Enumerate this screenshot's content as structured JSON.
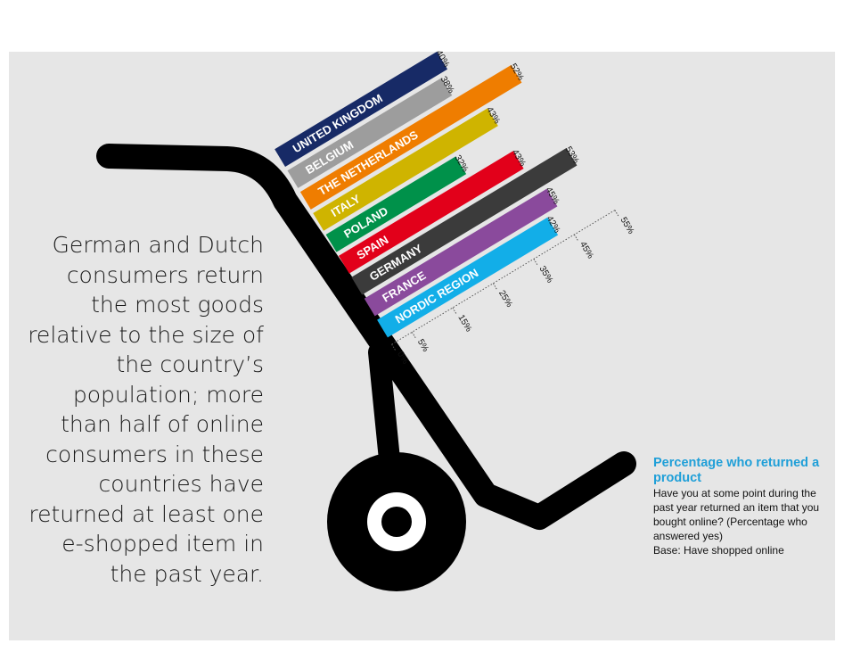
{
  "headline": "German and Dutch consumers return the most goods relative to the size of the country’s population; more than half of online consumers in these countries have returned at least one e-shopped item in the past year.",
  "legend": {
    "title": "Percentage who returned a product",
    "question": "Have you at some point during the past year returned an item that you bought online? (Percentage who answered yes)",
    "base": "Base: Have shopped online"
  },
  "chart_data": {
    "type": "bar",
    "title": "Percentage who returned a product",
    "categories": [
      "UNITED KINGDOM",
      "BELGIUM",
      "THE NETHERLANDS",
      "ITALY",
      "POLAND",
      "SPAIN",
      "GERMANY",
      "FRANCE",
      "NORDIC REGION"
    ],
    "values": [
      40,
      38,
      52,
      43,
      32,
      43,
      53,
      45,
      42
    ],
    "value_labels": [
      "40%",
      "38%",
      "52%",
      "43%",
      "32%",
      "43%",
      "53%",
      "45%",
      "42%"
    ],
    "colors": [
      "#172a66",
      "#9d9d9d",
      "#ef7d00",
      "#cfb400",
      "#00914a",
      "#e2001a",
      "#3b3b3b",
      "#8a4a9c",
      "#12aee8"
    ],
    "axis_ticks": [
      "0%",
      "5%",
      "15%",
      "25%",
      "35%",
      "45%",
      "55%"
    ],
    "axis_tick_values": [
      0,
      5,
      15,
      25,
      35,
      45,
      55
    ],
    "xlim": [
      0,
      55
    ],
    "orientation": "diagonal"
  }
}
